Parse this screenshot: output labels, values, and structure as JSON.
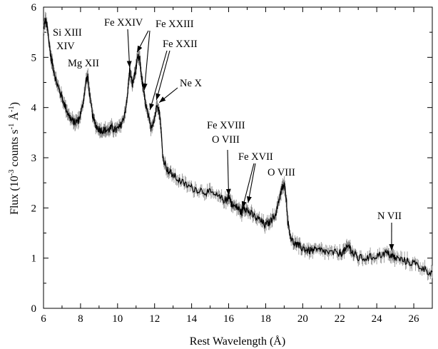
{
  "chart_data": {
    "type": "line",
    "xlabel": "Rest Wavelength (Å)",
    "ylabel_parts": {
      "prefix": "Flux (10",
      "exp1": "-3",
      "mid": " counts s",
      "exp2": "-1",
      "mid2": " Å",
      "exp3": "-1",
      "suffix": ")"
    },
    "xlim": [
      6,
      27
    ],
    "ylim": [
      0,
      6
    ],
    "xticks": [
      6,
      8,
      10,
      12,
      14,
      16,
      18,
      20,
      22,
      24,
      26
    ],
    "yticks": [
      0,
      1,
      2,
      3,
      4,
      5,
      6
    ],
    "grid": false,
    "series": [
      {
        "color": "#000000",
        "x": [
          6.0,
          6.1,
          6.2,
          6.3,
          6.4,
          6.5,
          6.7,
          6.9,
          7.1,
          7.3,
          7.5,
          7.7,
          7.9,
          8.1,
          8.3,
          8.4,
          8.5,
          8.7,
          8.9,
          9.1,
          9.3,
          9.5,
          9.7,
          9.9,
          10.1,
          10.3,
          10.5,
          10.65,
          10.8,
          10.95,
          11.1,
          11.2,
          11.3,
          11.45,
          11.6,
          11.8,
          12.0,
          12.15,
          12.3,
          12.45,
          12.7,
          13.0,
          13.5,
          14.0,
          14.5,
          15.0,
          15.5,
          15.9,
          16.0,
          16.2,
          16.5,
          16.7,
          16.8,
          17.0,
          17.3,
          17.7,
          18.0,
          18.3,
          18.6,
          18.8,
          18.9,
          19.0,
          19.1,
          19.2,
          19.4,
          19.7,
          20.0,
          20.3,
          20.6,
          21.0,
          21.5,
          22.0,
          22.3,
          22.5,
          22.7,
          23.0,
          23.5,
          24.0,
          24.5,
          24.8,
          25.0,
          25.5,
          26.0,
          26.5,
          27.0
        ],
        "values": [
          5.55,
          5.75,
          5.6,
          5.3,
          5.0,
          4.85,
          4.5,
          4.3,
          4.1,
          3.9,
          3.75,
          3.7,
          3.75,
          4.0,
          4.55,
          4.6,
          4.2,
          3.75,
          3.6,
          3.55,
          3.55,
          3.55,
          3.6,
          3.55,
          3.6,
          3.75,
          4.1,
          4.75,
          4.45,
          4.7,
          5.0,
          4.95,
          4.6,
          4.2,
          3.9,
          3.6,
          3.8,
          4.1,
          3.8,
          3.0,
          2.75,
          2.65,
          2.5,
          2.4,
          2.35,
          2.3,
          2.2,
          2.15,
          2.25,
          2.05,
          2.0,
          1.9,
          2.05,
          1.95,
          1.85,
          1.75,
          1.65,
          1.75,
          1.95,
          2.3,
          2.4,
          2.45,
          2.25,
          1.7,
          1.35,
          1.25,
          1.2,
          1.15,
          1.15,
          1.15,
          1.1,
          1.1,
          1.15,
          1.25,
          1.1,
          1.0,
          1.0,
          1.05,
          1.1,
          1.05,
          1.0,
          0.95,
          0.9,
          0.8,
          0.7
        ]
      }
    ],
    "annotations": [
      {
        "lines": [
          "Si XIII",
          "XIV"
        ],
        "arrow_targets": []
      },
      {
        "lines": [
          "Mg XII"
        ],
        "arrow_targets": []
      },
      {
        "lines": [
          "Fe XXIV"
        ],
        "arrow_targets": [
          [
            10.65,
            4.8
          ]
        ]
      },
      {
        "lines": [
          "Fe XXIII"
        ],
        "arrow_targets": [
          [
            11.05,
            5.1
          ],
          [
            11.45,
            4.35
          ]
        ]
      },
      {
        "lines": [
          "Fe XXII"
        ],
        "arrow_targets": [
          [
            11.75,
            3.95
          ],
          [
            12.1,
            4.15
          ]
        ]
      },
      {
        "lines": [
          "Ne X"
        ],
        "arrow_targets": [
          [
            12.25,
            4.1
          ]
        ]
      },
      {
        "lines": [
          "Fe XVIII",
          "O VIII"
        ],
        "arrow_targets": [
          [
            16.0,
            2.25
          ]
        ]
      },
      {
        "lines": [
          "Fe XVII"
        ],
        "arrow_targets": [
          [
            16.75,
            2.0
          ],
          [
            17.05,
            2.1
          ]
        ]
      },
      {
        "lines": [
          "O VIII"
        ],
        "arrow_targets": []
      },
      {
        "lines": [
          "N VII"
        ],
        "arrow_targets": [
          [
            24.8,
            1.15
          ]
        ]
      }
    ]
  }
}
